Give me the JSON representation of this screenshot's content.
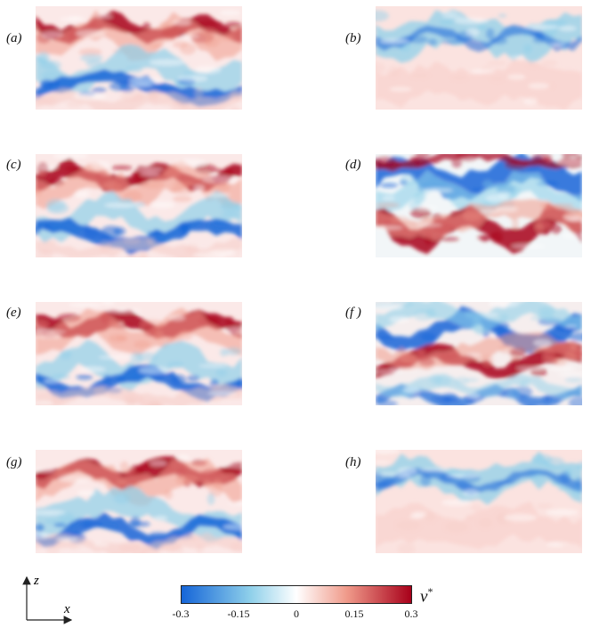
{
  "panels": [
    {
      "label": "(a)",
      "pattern": "upper-red-lower-blue"
    },
    {
      "label": "(b)",
      "pattern": "upper-blue-weak-lower-pink"
    },
    {
      "label": "(c)",
      "pattern": "upper-red-lower-blue"
    },
    {
      "label": "(d)",
      "pattern": "upper-blue-lower-red-strong"
    },
    {
      "label": "(e)",
      "pattern": "upper-red-lower-blue"
    },
    {
      "label": "(f )",
      "pattern": "upper-blue-middle-red-strong"
    },
    {
      "label": "(g)",
      "pattern": "upper-red-lower-blue"
    },
    {
      "label": "(h)",
      "pattern": "upper-blue-weak-lower-pink"
    }
  ],
  "axes": {
    "vertical": "z",
    "horizontal": "x"
  },
  "colorbar": {
    "variable": "v",
    "superscript": "*",
    "ticks": [
      "-0.3",
      "-0.15",
      "0",
      "0.15",
      "0.3"
    ],
    "range": [
      -0.3,
      0.3
    ],
    "colors": {
      "min": "#1565d8",
      "low": "#8fd0ea",
      "mid": "#ffffff",
      "high": "#f09a8a",
      "max": "#a8001a"
    }
  }
}
